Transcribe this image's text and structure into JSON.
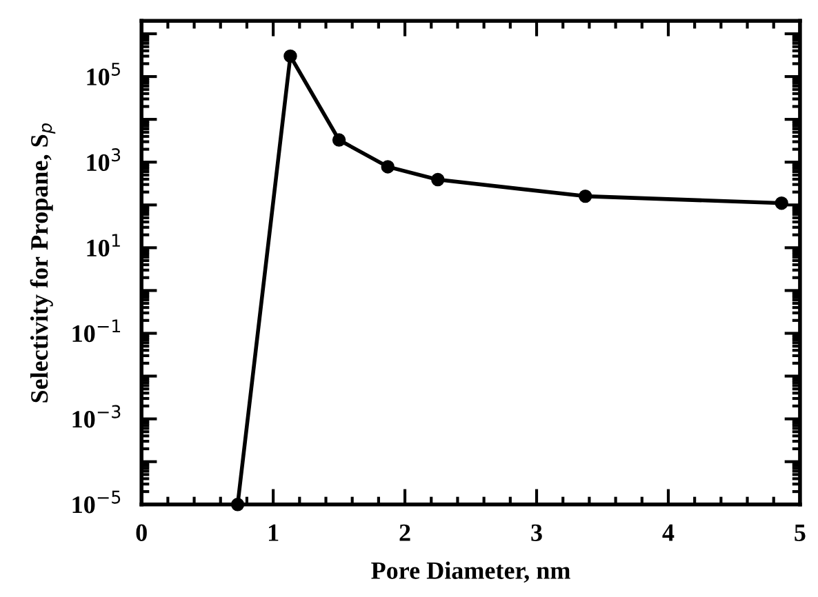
{
  "chart_data": {
    "type": "line",
    "xlabel": "Pore Diameter, nm",
    "ylabel": "Selectivity for Propane, S$_{p}$",
    "x": [
      0.73,
      1.13,
      1.5,
      1.87,
      2.25,
      3.37,
      4.86
    ],
    "series": [
      {
        "color": "#000000",
        "values": [
          1e-05,
          300000,
          3300,
          780,
          390,
          160,
          110
        ]
      }
    ],
    "marker": "circle",
    "line_style": "solid",
    "log": "y",
    "grid": false,
    "legend": false,
    "xlim": [
      0,
      5
    ],
    "xticks": [
      0,
      1,
      2,
      3,
      4,
      5
    ],
    "ylim": [
      1e-05,
      2000000
    ],
    "yticks": [
      {
        "value": 1e-05,
        "label": "10$^{−5}$"
      },
      {
        "value": 0.0001,
        "label": null
      },
      {
        "value": 0.001,
        "label": "10$^{−3}$"
      },
      {
        "value": 0.01,
        "label": null
      },
      {
        "value": 0.1,
        "label": "10$^{−1}$"
      },
      {
        "value": 1,
        "label": null
      },
      {
        "value": 10,
        "label": "10$^{1}$"
      },
      {
        "value": 100,
        "label": null
      },
      {
        "value": 1000,
        "label": "10$^{3}$"
      },
      {
        "value": 10000,
        "label": null
      },
      {
        "value": 100000,
        "label": "10$^{5}$"
      },
      {
        "value": 1000000,
        "label": null
      }
    ]
  }
}
